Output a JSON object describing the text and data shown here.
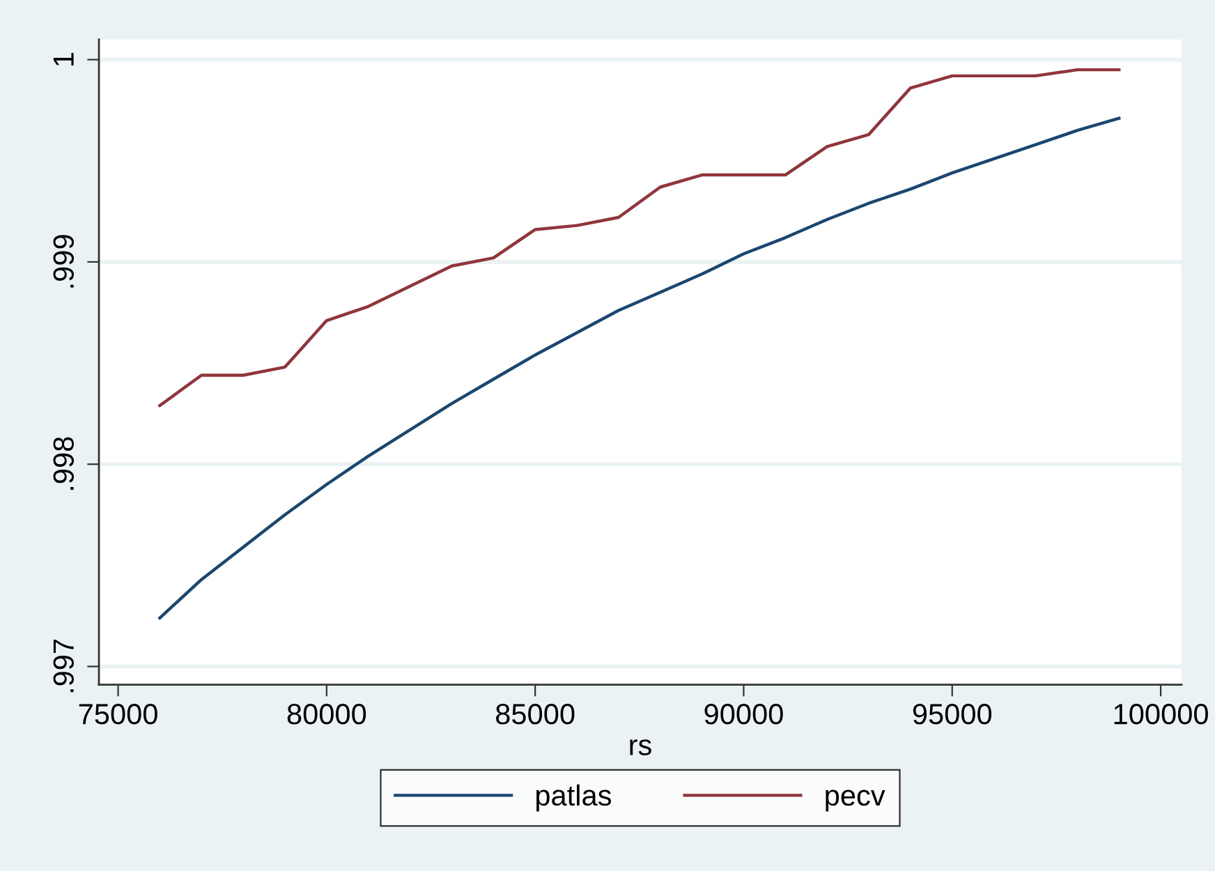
{
  "chart_data": {
    "type": "line",
    "xlabel": "rs",
    "x": [
      76000,
      77000,
      78000,
      79000,
      80000,
      81000,
      82000,
      83000,
      84000,
      85000,
      86000,
      87000,
      88000,
      89000,
      90000,
      91000,
      92000,
      93000,
      94000,
      95000,
      96000,
      97000,
      98000,
      99000
    ],
    "series": [
      {
        "name": "patlas",
        "color": "#1a476f",
        "values": [
          0.99724,
          0.99743,
          0.99759,
          0.99775,
          0.9979,
          0.99804,
          0.99817,
          0.9983,
          0.99842,
          0.99854,
          0.99865,
          0.99876,
          0.99885,
          0.99894,
          0.99904,
          0.99912,
          0.99921,
          0.99929,
          0.99936,
          0.99944,
          0.99951,
          0.99958,
          0.99965,
          0.99971
        ]
      },
      {
        "name": "pecv",
        "color": "#90353b",
        "values": [
          0.99829,
          0.99844,
          0.99844,
          0.99848,
          0.99871,
          0.99878,
          0.99888,
          0.99898,
          0.99902,
          0.99916,
          0.99918,
          0.99922,
          0.99937,
          0.99943,
          0.99943,
          0.99943,
          0.99957,
          0.99963,
          0.99986,
          0.99992,
          0.99992,
          0.99992,
          0.99995,
          0.99995
        ]
      }
    ],
    "xlim": [
      74540,
      100500
    ],
    "ylim": [
      0.99691,
      1.0001
    ],
    "xticks": [
      75000,
      80000,
      85000,
      90000,
      95000,
      100000
    ],
    "yticks": [
      {
        "value": 0.997,
        "label": ".997"
      },
      {
        "value": 0.998,
        "label": ".998"
      },
      {
        "value": 0.999,
        "label": ".999"
      },
      1
    ],
    "grid": "y",
    "legend": "bottom",
    "line_style": "solid"
  }
}
